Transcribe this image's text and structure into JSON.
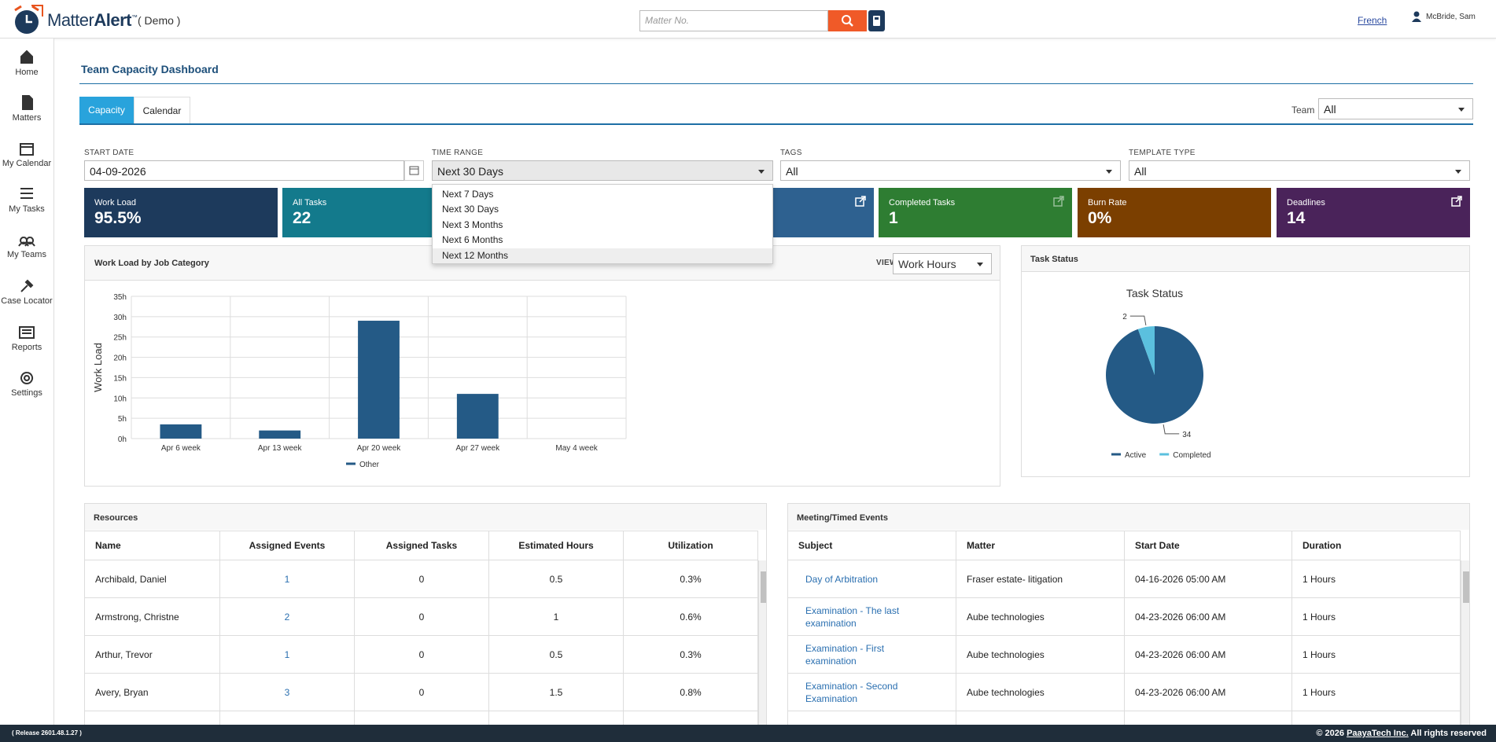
{
  "header": {
    "brand_light": "Matter",
    "brand_bold": "Alert",
    "brand_tm": "™",
    "demo": "( Demo )",
    "search_placeholder": "Matter No.",
    "language": "French",
    "user": "McBride, Sam"
  },
  "sidebar": [
    "Home",
    "Matters",
    "My Calendar",
    "My Tasks",
    "My Teams",
    "Case Locator",
    "Reports",
    "Settings"
  ],
  "page": {
    "title": "Team Capacity Dashboard",
    "tabs": [
      "Capacity",
      "Calendar"
    ],
    "team_label": "Team",
    "team_value": "All"
  },
  "filters": {
    "start_date_label": "START DATE",
    "start_date": "04-09-2026",
    "time_range_label": "TIME RANGE",
    "time_range": "Next 30 Days",
    "time_range_options": [
      "Next 7 Days",
      "Next 30 Days",
      "Next 3 Months",
      "Next 6 Months",
      "Next 12 Months"
    ],
    "tags_label": "TAGS",
    "tags": "All",
    "template_type_label": "TEMPLATE TYPE",
    "template_type": "All"
  },
  "cards": [
    {
      "label": "Work Load",
      "value": "95.5%"
    },
    {
      "label": "All Tasks",
      "value": 22
    },
    {
      "label": "Completed Tasks",
      "value": 1
    },
    {
      "label": "Burn Rate",
      "value": "0%"
    },
    {
      "label": "Deadlines",
      "value": 14
    }
  ],
  "workload_panel": {
    "title": "Work Load by Job Category",
    "view_label": "VIEW",
    "view_value": "Work Hours"
  },
  "task_status_panel": {
    "title": "Task Status"
  },
  "chart_data": [
    {
      "type": "bar",
      "y_label": "Work Load",
      "categories": [
        "Apr 6 week",
        "Apr 13 week",
        "Apr 20 week",
        "Apr 27 week",
        "May 4 week"
      ],
      "series": [
        {
          "name": "Other",
          "color": "#245a86",
          "values": [
            3.5,
            2,
            29,
            11,
            0
          ]
        }
      ],
      "ylim": [
        0,
        35
      ],
      "yticks": [
        {
          "value": 0,
          "label": "0h"
        },
        {
          "value": 5,
          "label": "5h"
        },
        {
          "value": 10,
          "label": "10h"
        },
        {
          "value": 15,
          "label": "15h"
        },
        {
          "value": 20,
          "label": "20h"
        },
        {
          "value": 25,
          "label": "25h"
        },
        {
          "value": 30,
          "label": "30h"
        },
        {
          "value": 35,
          "label": "35h"
        }
      ],
      "grid": true
    },
    {
      "type": "pie",
      "title": "Task Status",
      "categories": [
        "Active",
        "Completed"
      ],
      "values": [
        34,
        2
      ],
      "colors": [
        "#245a86",
        "#5bc0de"
      ]
    }
  ],
  "resources": {
    "title": "Resources",
    "columns": [
      "Name",
      "Assigned Events",
      "Assigned Tasks",
      "Estimated Hours",
      "Utilization"
    ],
    "rows": [
      [
        "Archibald, Daniel",
        1,
        0,
        0.5,
        "0.3%"
      ],
      [
        "Armstrong, Christne",
        2,
        0,
        1,
        "0.6%"
      ],
      [
        "Arthur, Trevor",
        1,
        0,
        0.5,
        "0.3%"
      ],
      [
        "Avery, Bryan",
        3,
        0,
        1.5,
        "0.8%"
      ]
    ]
  },
  "meetings": {
    "title": "Meeting/Timed Events",
    "columns": [
      "Subject",
      "Matter",
      "Start Date",
      "Duration"
    ],
    "rows": [
      [
        "Day of Arbitration",
        "Fraser estate- litigation",
        "04-16-2026 05:00 AM",
        "1 Hours"
      ],
      [
        "Examination - The last examination",
        "Aube technologies",
        "04-23-2026 06:00 AM",
        "1 Hours"
      ],
      [
        "Examination - First examination",
        "Aube technologies",
        "04-23-2026 06:00 AM",
        "1 Hours"
      ],
      [
        "Examination - Second Examination",
        "Aube technologies",
        "04-23-2026 06:00 AM",
        "1 Hours"
      ]
    ]
  },
  "footer": {
    "release": "( Release 2601.48.1.27 )",
    "copyright": "© 2026",
    "company": "PaayaTech Inc.",
    "rights": "All rights reserved"
  }
}
